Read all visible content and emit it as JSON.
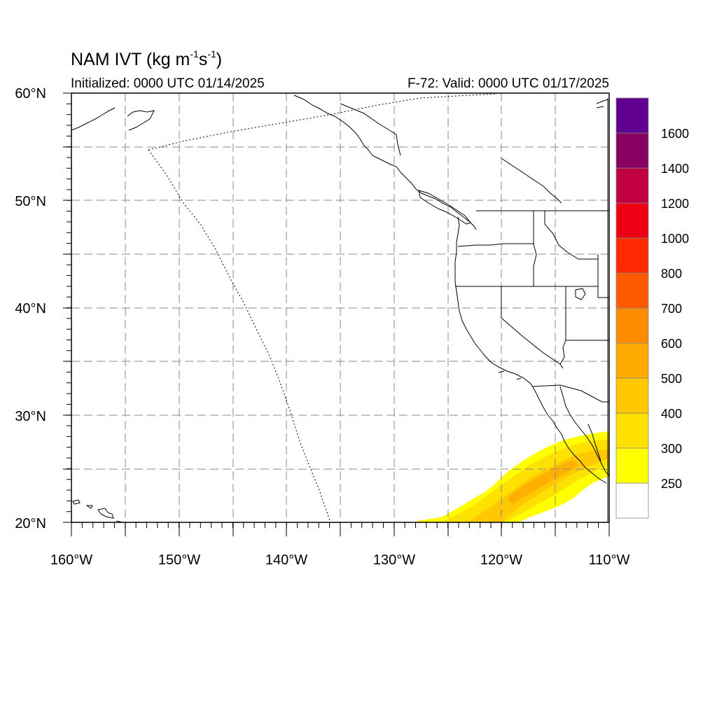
{
  "title": {
    "main": "NAM IVT (kg m",
    "sup1": "-1",
    "mid": "s",
    "sup2": "-1",
    "end": ")"
  },
  "subtitle_left": "Initialized: 0000 UTC 01/14/2025",
  "subtitle_right": "F-72: Valid: 0000 UTC 01/17/2025",
  "map": {
    "lon_range": [
      -160,
      -110
    ],
    "lat_range": [
      20,
      60
    ],
    "lon_tick_labels": [
      "160°W",
      "150°W",
      "140°W",
      "130°W",
      "120°W",
      "110°W"
    ],
    "lat_tick_labels": [
      "20°N",
      "30°N",
      "40°N",
      "50°N",
      "60°N"
    ],
    "grid": "dashed, every 5°",
    "ivt_plume": "yellow-orange band 250–500 from 20°N 128°W to 28°N 110°W"
  },
  "colorbar": {
    "levels": [
      "250",
      "300",
      "400",
      "500",
      "600",
      "700",
      "800",
      "1000",
      "1200",
      "1400",
      "1600"
    ],
    "colors": [
      "#ffffff",
      "#ffff00",
      "#ffe100",
      "#ffc800",
      "#ffaa00",
      "#ff8c00",
      "#ff5a00",
      "#ff2800",
      "#ee0014",
      "#c00040",
      "#880060",
      "#600090"
    ]
  }
}
